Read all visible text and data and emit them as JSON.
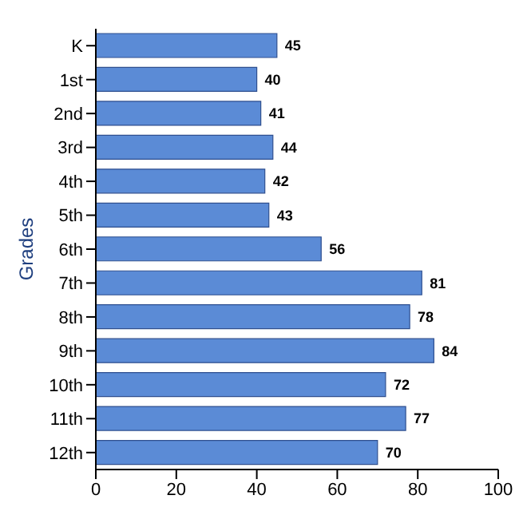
{
  "chart_data": {
    "type": "bar",
    "orientation": "horizontal",
    "ylabel": "Grades",
    "categories": [
      "K",
      "1st",
      "2nd",
      "3rd",
      "4th",
      "5th",
      "6th",
      "7th",
      "8th",
      "9th",
      "10th",
      "11th",
      "12th"
    ],
    "values": [
      45,
      40,
      41,
      44,
      42,
      43,
      56,
      81,
      78,
      84,
      72,
      77,
      70
    ],
    "color": "#5b8bd6",
    "xlim": [
      0,
      100
    ],
    "xticks": [
      0,
      20,
      40,
      60,
      80,
      100
    ],
    "data_labels": true
  }
}
